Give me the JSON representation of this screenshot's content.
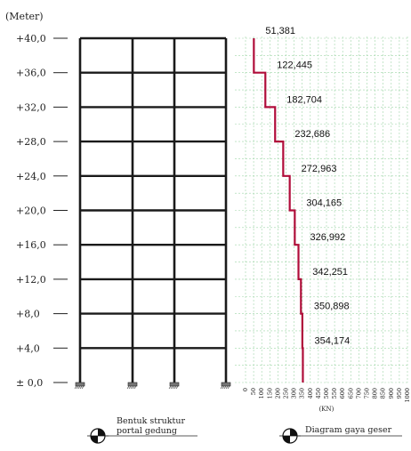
{
  "units_label": "(Meter)",
  "elevation_labels": [
    "± 0,0",
    "+4,0",
    "+8,0",
    "+12,0",
    "+16,0",
    "+20,0",
    "+24,0",
    "+28,0",
    "+32,0",
    "+36,0",
    "+40,0"
  ],
  "portal": {
    "caption_line1": "Bentuk struktur",
    "caption_line2": "portal gedung",
    "stories": 10,
    "bays": 3
  },
  "chart_data": {
    "type": "line",
    "title": "Diagram gaya geser",
    "xlabel": "(KN)",
    "x_ticks": [
      0,
      50,
      100,
      150,
      200,
      250,
      300,
      350,
      400,
      450,
      500,
      550,
      600,
      650,
      700,
      750,
      800,
      850,
      900,
      950,
      1000
    ],
    "xlim": [
      0,
      1000
    ],
    "ylim": [
      0,
      40
    ],
    "grid": true,
    "series": [
      {
        "floors": [
          {
            "from": 36,
            "to": 40,
            "value": 51.381,
            "label": "51,381"
          },
          {
            "from": 32,
            "to": 36,
            "value": 122.445,
            "label": "122,445"
          },
          {
            "from": 28,
            "to": 32,
            "value": 182.704,
            "label": "182,704"
          },
          {
            "from": 24,
            "to": 28,
            "value": 232.686,
            "label": "232,686"
          },
          {
            "from": 20,
            "to": 24,
            "value": 272.963,
            "label": "272,963"
          },
          {
            "from": 16,
            "to": 20,
            "value": 304.165,
            "label": "304,165"
          },
          {
            "from": 12,
            "to": 16,
            "value": 326.992,
            "label": "326,992"
          },
          {
            "from": 8,
            "to": 12,
            "value": 342.251,
            "label": "342,251"
          },
          {
            "from": 4,
            "to": 8,
            "value": 350.898,
            "label": "350,898"
          },
          {
            "from": 0,
            "to": 4,
            "value": 354.174,
            "label": "354,174"
          }
        ]
      }
    ]
  },
  "colors": {
    "frame": "#1a1a1a",
    "shear_line": "#b00d3a",
    "grid": "#9fd6a8"
  }
}
